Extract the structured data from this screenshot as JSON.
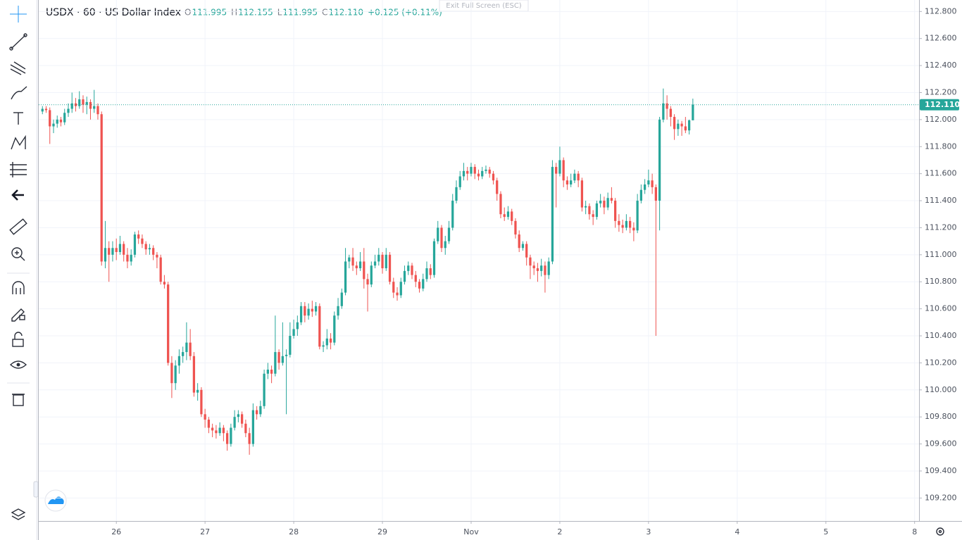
{
  "header": {
    "symbol": "USDX · 60 · US Dollar Index",
    "ohlc": [
      {
        "key": "O",
        "value": "111.995"
      },
      {
        "key": "H",
        "value": "112.155"
      },
      {
        "key": "L",
        "value": "111.995"
      },
      {
        "key": "C",
        "value": "112.110"
      }
    ],
    "change": "+0.125 (+0.11%)",
    "exit_full_screen": "Exit Full Screen (ESC)"
  },
  "chart_data": {
    "type": "candlestick",
    "up_color": "#26a69a",
    "down_color": "#ef5350",
    "grid": true,
    "ylim": [
      109.03,
      112.885
    ],
    "yticks": [
      {
        "value": 109.2,
        "label": "109.200"
      },
      {
        "value": 109.4,
        "label": "109.400"
      },
      {
        "value": 109.6,
        "label": "109.600"
      },
      {
        "value": 109.8,
        "label": "109.800"
      },
      {
        "value": 110,
        "label": "110.000"
      },
      {
        "value": 110.2,
        "label": "110.200"
      },
      {
        "value": 110.4,
        "label": "110.400"
      },
      {
        "value": 110.6,
        "label": "110.600"
      },
      {
        "value": 110.8,
        "label": "110.800"
      },
      {
        "value": 111,
        "label": "111.000"
      },
      {
        "value": 111.2,
        "label": "111.200"
      },
      {
        "value": 111.4,
        "label": "111.400"
      },
      {
        "value": 111.6,
        "label": "111.600"
      },
      {
        "value": 111.8,
        "label": "111.800"
      },
      {
        "value": 112,
        "label": "112.000"
      },
      {
        "value": 112.2,
        "label": "112.200"
      },
      {
        "value": 112.4,
        "label": "112.400"
      },
      {
        "value": 112.6,
        "label": "112.600"
      },
      {
        "value": 112.8,
        "label": "112.800"
      }
    ],
    "xlim": [
      -1,
      237.2
    ],
    "xticks": [
      {
        "value": 20,
        "label": "26"
      },
      {
        "value": 44,
        "label": "27"
      },
      {
        "value": 68,
        "label": "28"
      },
      {
        "value": 92,
        "label": "29"
      },
      {
        "value": 116,
        "label": "Nov"
      },
      {
        "value": 140,
        "label": "2"
      },
      {
        "value": 164,
        "label": "3"
      },
      {
        "value": 188,
        "label": "4"
      },
      {
        "value": 212,
        "label": "5"
      },
      {
        "value": 236,
        "label": "8"
      }
    ],
    "last_price": {
      "value": 112.11,
      "label": "112.110"
    },
    "candles": [
      [
        112.06,
        112.1,
        112.04,
        112.08
      ],
      [
        112.08,
        112.1,
        112.05,
        112.07
      ],
      [
        112.07,
        112.09,
        111.82,
        111.95
      ],
      [
        111.95,
        112,
        111.9,
        111.97
      ],
      [
        111.97,
        112.03,
        111.94,
        112
      ],
      [
        112,
        112.02,
        111.95,
        111.98
      ],
      [
        111.98,
        112.08,
        111.96,
        112.05
      ],
      [
        112.05,
        112.12,
        112.02,
        112.08
      ],
      [
        112.08,
        112.2,
        112.05,
        112.12
      ],
      [
        112.12,
        112.16,
        112.06,
        112.1
      ],
      [
        112.1,
        112.21,
        112.08,
        112.15
      ],
      [
        112.15,
        112.18,
        112.05,
        112.11
      ],
      [
        112.11,
        112.17,
        112.04,
        112.13
      ],
      [
        112.13,
        112.15,
        112,
        112.08
      ],
      [
        112.08,
        112.22,
        112.05,
        112.1
      ],
      [
        112.1,
        112.12,
        112,
        112.04
      ],
      [
        112.04,
        112.06,
        110.92,
        110.95
      ],
      [
        110.95,
        111.25,
        110.9,
        111.05
      ],
      [
        111.05,
        111.1,
        110.8,
        111
      ],
      [
        111,
        111.1,
        110.95,
        111.05
      ],
      [
        111.05,
        111.12,
        110.96,
        111.02
      ],
      [
        111.02,
        111.14,
        111,
        111.08
      ],
      [
        111.08,
        111.1,
        110.95,
        111
      ],
      [
        111,
        111.05,
        110.9,
        110.95
      ],
      [
        110.95,
        111.04,
        110.92,
        111
      ],
      [
        111,
        111.17,
        110.98,
        111.15
      ],
      [
        111.15,
        111.18,
        111.08,
        111.12
      ],
      [
        111.12,
        111.15,
        111.05,
        111.08
      ],
      [
        111.08,
        111.1,
        111,
        111.04
      ],
      [
        111.04,
        111.08,
        111,
        111.05
      ],
      [
        111.05,
        111.07,
        110.96,
        111
      ],
      [
        111,
        111.02,
        110.9,
        110.98
      ],
      [
        110.98,
        111,
        110.78,
        110.8
      ],
      [
        110.8,
        110.85,
        110.75,
        110.78
      ],
      [
        110.78,
        110.8,
        110.18,
        110.2
      ],
      [
        110.2,
        110.25,
        109.94,
        110.05
      ],
      [
        110.05,
        110.22,
        110,
        110.18
      ],
      [
        110.18,
        110.3,
        110.12,
        110.25
      ],
      [
        110.25,
        110.32,
        110.2,
        110.28
      ],
      [
        110.28,
        110.5,
        110.22,
        110.35
      ],
      [
        110.35,
        110.45,
        110.22,
        110.25
      ],
      [
        110.25,
        110.28,
        109.95,
        109.98
      ],
      [
        109.98,
        110.05,
        109.92,
        110
      ],
      [
        110,
        110.02,
        109.8,
        109.82
      ],
      [
        109.82,
        109.86,
        109.72,
        109.78
      ],
      [
        109.78,
        109.8,
        109.68,
        109.72
      ],
      [
        109.72,
        109.75,
        109.65,
        109.7
      ],
      [
        109.7,
        109.74,
        109.64,
        109.68
      ],
      [
        109.68,
        109.76,
        109.66,
        109.72
      ],
      [
        109.72,
        109.74,
        109.62,
        109.68
      ],
      [
        109.68,
        109.7,
        109.55,
        109.6
      ],
      [
        109.6,
        109.75,
        109.58,
        109.72
      ],
      [
        109.72,
        109.85,
        109.7,
        109.8
      ],
      [
        109.8,
        109.85,
        109.76,
        109.82
      ],
      [
        109.82,
        109.84,
        109.72,
        109.75
      ],
      [
        109.75,
        109.78,
        109.65,
        109.68
      ],
      [
        109.68,
        109.72,
        109.52,
        109.6
      ],
      [
        109.6,
        109.9,
        109.58,
        109.85
      ],
      [
        109.85,
        109.88,
        109.78,
        109.82
      ],
      [
        109.82,
        109.92,
        109.8,
        109.88
      ],
      [
        109.88,
        110.15,
        109.86,
        110.12
      ],
      [
        110.12,
        110.2,
        110.08,
        110.15
      ],
      [
        110.15,
        110.18,
        110.05,
        110.12
      ],
      [
        110.12,
        110.55,
        110.1,
        110.28
      ],
      [
        110.28,
        110.3,
        110.15,
        110.2
      ],
      [
        110.2,
        110.5,
        110.18,
        110.25
      ],
      [
        110.25,
        110.3,
        109.82,
        110.26
      ],
      [
        110.26,
        110.5,
        110.24,
        110.4
      ],
      [
        110.4,
        110.52,
        110.38,
        110.45
      ],
      [
        110.45,
        110.55,
        110.4,
        110.5
      ],
      [
        110.5,
        110.65,
        110.48,
        110.62
      ],
      [
        110.62,
        110.65,
        110.5,
        110.55
      ],
      [
        110.55,
        110.64,
        110.52,
        110.6
      ],
      [
        110.6,
        110.66,
        110.54,
        110.58
      ],
      [
        110.58,
        110.65,
        110.55,
        110.62
      ],
      [
        110.62,
        110.64,
        110.3,
        110.32
      ],
      [
        110.32,
        110.36,
        110.28,
        110.33
      ],
      [
        110.33,
        110.45,
        110.3,
        110.38
      ],
      [
        110.38,
        110.42,
        110.3,
        110.35
      ],
      [
        110.35,
        110.58,
        110.33,
        110.55
      ],
      [
        110.55,
        110.68,
        110.52,
        110.62
      ],
      [
        110.62,
        110.75,
        110.6,
        110.72
      ],
      [
        110.72,
        111.05,
        110.7,
        110.95
      ],
      [
        110.95,
        111,
        110.9,
        110.98
      ],
      [
        110.98,
        111.05,
        110.88,
        110.92
      ],
      [
        110.92,
        110.95,
        110.85,
        110.9
      ],
      [
        110.9,
        111.02,
        110.88,
        110.95
      ],
      [
        110.95,
        111.05,
        110.75,
        110.82
      ],
      [
        110.82,
        110.86,
        110.58,
        110.78
      ],
      [
        110.78,
        110.95,
        110.76,
        110.92
      ],
      [
        110.92,
        111,
        110.9,
        110.95
      ],
      [
        110.95,
        111.05,
        110.92,
        111
      ],
      [
        111,
        111.02,
        110.86,
        110.9
      ],
      [
        110.9,
        111.05,
        110.88,
        111
      ],
      [
        111,
        111.02,
        110.78,
        110.8
      ],
      [
        110.8,
        110.83,
        110.68,
        110.72
      ],
      [
        110.72,
        110.76,
        110.66,
        110.7
      ],
      [
        110.7,
        110.83,
        110.68,
        110.8
      ],
      [
        110.8,
        110.92,
        110.78,
        110.88
      ],
      [
        110.88,
        110.95,
        110.85,
        110.92
      ],
      [
        110.92,
        110.94,
        110.82,
        110.85
      ],
      [
        110.85,
        110.88,
        110.76,
        110.8
      ],
      [
        110.8,
        110.82,
        110.72,
        110.75
      ],
      [
        110.75,
        110.86,
        110.73,
        110.82
      ],
      [
        110.82,
        110.95,
        110.8,
        110.9
      ],
      [
        110.9,
        110.93,
        110.82,
        110.85
      ],
      [
        110.85,
        111.12,
        110.83,
        111.1
      ],
      [
        111.1,
        111.25,
        111.08,
        111.2
      ],
      [
        111.2,
        111.22,
        111.02,
        111.05
      ],
      [
        111.05,
        111.14,
        111,
        111.1
      ],
      [
        111.1,
        111.25,
        111.08,
        111.2
      ],
      [
        111.2,
        111.45,
        111.18,
        111.4
      ],
      [
        111.4,
        111.55,
        111.38,
        111.5
      ],
      [
        111.5,
        111.62,
        111.48,
        111.58
      ],
      [
        111.58,
        111.68,
        111.55,
        111.62
      ],
      [
        111.62,
        111.65,
        111.55,
        111.6
      ],
      [
        111.6,
        111.68,
        111.58,
        111.65
      ],
      [
        111.65,
        111.67,
        111.56,
        111.6
      ],
      [
        111.6,
        111.63,
        111.55,
        111.58
      ],
      [
        111.58,
        111.65,
        111.56,
        111.62
      ],
      [
        111.62,
        111.66,
        111.6,
        111.63
      ],
      [
        111.63,
        111.65,
        111.57,
        111.6
      ],
      [
        111.6,
        111.62,
        111.52,
        111.55
      ],
      [
        111.55,
        111.57,
        111.4,
        111.45
      ],
      [
        111.45,
        111.47,
        111.27,
        111.3
      ],
      [
        111.3,
        111.35,
        111.25,
        111.28
      ],
      [
        111.28,
        111.36,
        111.26,
        111.32
      ],
      [
        111.32,
        111.34,
        111.22,
        111.25
      ],
      [
        111.25,
        111.27,
        111.12,
        111.15
      ],
      [
        111.15,
        111.18,
        111.02,
        111.05
      ],
      [
        111.05,
        111.1,
        111.03,
        111.08
      ],
      [
        111.08,
        111.1,
        110.92,
        110.98
      ],
      [
        110.98,
        111,
        110.82,
        110.92
      ],
      [
        110.92,
        110.95,
        110.85,
        110.9
      ],
      [
        110.9,
        110.94,
        110.8,
        110.88
      ],
      [
        110.88,
        110.97,
        110.84,
        110.92
      ],
      [
        110.92,
        110.95,
        110.72,
        110.85
      ],
      [
        110.85,
        110.98,
        110.82,
        110.95
      ],
      [
        110.95,
        111.7,
        110.93,
        111.65
      ],
      [
        111.65,
        111.68,
        111.35,
        111.6
      ],
      [
        111.6,
        111.8,
        111.58,
        111.7
      ],
      [
        111.7,
        111.72,
        111.5,
        111.55
      ],
      [
        111.55,
        111.58,
        111.48,
        111.52
      ],
      [
        111.52,
        111.6,
        111.5,
        111.55
      ],
      [
        111.55,
        111.63,
        111.53,
        111.6
      ],
      [
        111.6,
        111.62,
        111.5,
        111.55
      ],
      [
        111.55,
        111.57,
        111.32,
        111.35
      ],
      [
        111.35,
        111.4,
        111.3,
        111.36
      ],
      [
        111.36,
        111.38,
        111.26,
        111.3
      ],
      [
        111.3,
        111.33,
        111.22,
        111.28
      ],
      [
        111.28,
        111.4,
        111.26,
        111.38
      ],
      [
        111.38,
        111.45,
        111.35,
        111.4
      ],
      [
        111.4,
        111.43,
        111.3,
        111.35
      ],
      [
        111.35,
        111.46,
        111.33,
        111.42
      ],
      [
        111.42,
        111.5,
        111.38,
        111.4
      ],
      [
        111.4,
        111.42,
        111.2,
        111.25
      ],
      [
        111.25,
        111.3,
        111.17,
        111.22
      ],
      [
        111.22,
        111.26,
        111.16,
        111.2
      ],
      [
        111.2,
        111.3,
        111.18,
        111.25
      ],
      [
        111.25,
        111.28,
        111.16,
        111.2
      ],
      [
        111.2,
        111.24,
        111.1,
        111.18
      ],
      [
        111.18,
        111.45,
        111.16,
        111.4
      ],
      [
        111.4,
        111.52,
        111.38,
        111.48
      ],
      [
        111.48,
        111.56,
        111.45,
        111.52
      ],
      [
        111.52,
        111.63,
        111.5,
        111.55
      ],
      [
        111.55,
        111.6,
        111.45,
        111.5
      ],
      [
        111.5,
        111.52,
        110.4,
        111.4
      ],
      [
        111.4,
        112.02,
        111.18,
        112
      ],
      [
        112,
        112.23,
        111.98,
        112.12
      ],
      [
        112.12,
        112.18,
        112,
        112.08
      ],
      [
        112.08,
        112.1,
        111.95,
        112.02
      ],
      [
        112.02,
        112.04,
        111.85,
        111.93
      ],
      [
        111.93,
        112,
        111.88,
        111.97
      ],
      [
        111.97,
        111.99,
        111.88,
        111.95
      ],
      [
        111.95,
        112.02,
        111.9,
        111.92
      ],
      [
        111.92,
        112,
        111.89,
        111.995
      ],
      [
        111.995,
        112.155,
        111.995,
        112.11
      ]
    ]
  }
}
